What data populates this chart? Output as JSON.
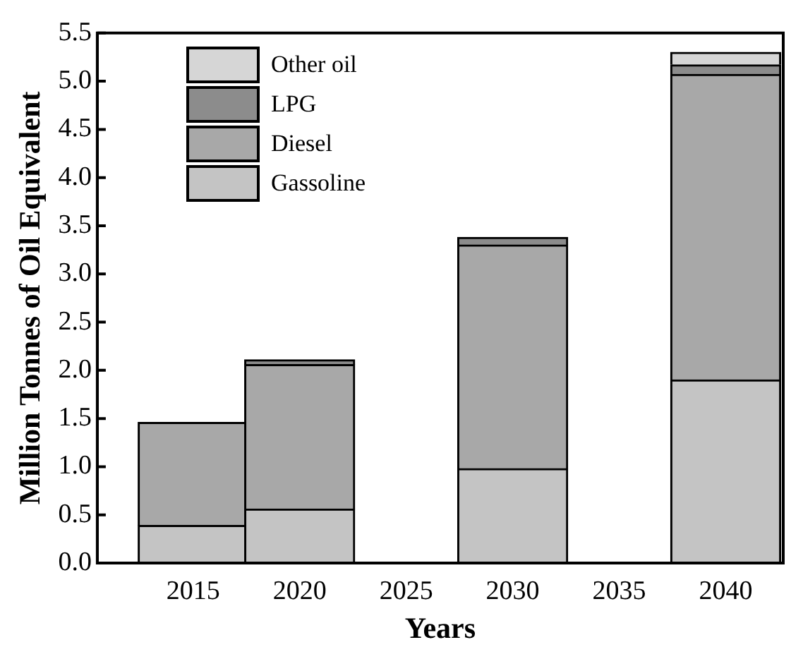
{
  "chart_data": {
    "type": "bar",
    "stacked": true,
    "x": [
      2015,
      2020,
      2030,
      2040
    ],
    "xlabel": "Years",
    "ylabel": "Million Tonnes of Oil Equivalent",
    "xlim": [
      2010.5,
      2042.7
    ],
    "xticks": [
      2015,
      2020,
      2025,
      2030,
      2035,
      2040
    ],
    "ylim": [
      0,
      5.5
    ],
    "yticks": [
      {
        "value": 0,
        "label": "0.0"
      },
      0.5,
      {
        "value": 1,
        "label": "1.0"
      },
      1.5,
      {
        "value": 2,
        "label": "2.0"
      },
      2.5,
      {
        "value": 3,
        "label": "3.0"
      },
      3.5,
      {
        "value": 4,
        "label": "4.0"
      },
      4.5,
      {
        "value": 5,
        "label": "5.0"
      },
      5.5
    ],
    "grid": false,
    "legend": "top left",
    "series": [
      {
        "name": "Gassoline",
        "color": "#c4c4c4",
        "values": [
          0.39,
          0.56,
          0.98,
          1.9
        ]
      },
      {
        "name": "Diesel",
        "color": "#a8a8a8",
        "values": [
          1.07,
          1.5,
          2.32,
          3.17
        ]
      },
      {
        "name": "LPG",
        "color": "#8c8c8c",
        "values": [
          0,
          0.05,
          0.08,
          0.1
        ]
      },
      {
        "name": "Other oil",
        "color": "#d6d6d6",
        "values": [
          0,
          0,
          0,
          0.13
        ]
      }
    ]
  }
}
